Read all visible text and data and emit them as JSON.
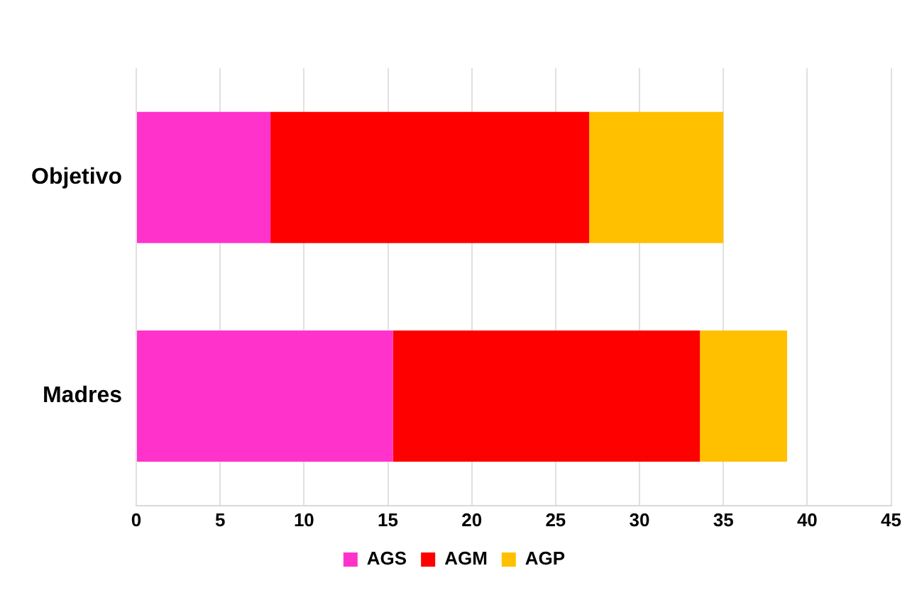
{
  "chart_data": {
    "type": "bar",
    "orientation": "horizontal",
    "stacked": true,
    "categories": [
      "Objetivo",
      "Madres"
    ],
    "series": [
      {
        "name": "AGS",
        "color": "#ff33cc",
        "values": [
          8,
          15.3
        ]
      },
      {
        "name": "AGM",
        "color": "#ff0000",
        "values": [
          19,
          18.3
        ]
      },
      {
        "name": "AGP",
        "color": "#ffc000",
        "values": [
          8,
          5.2
        ]
      }
    ],
    "xlim": [
      0,
      45
    ],
    "xticks": [
      0,
      5,
      10,
      15,
      20,
      25,
      30,
      35,
      40,
      45
    ],
    "grid": "x",
    "legend": "bottom"
  }
}
